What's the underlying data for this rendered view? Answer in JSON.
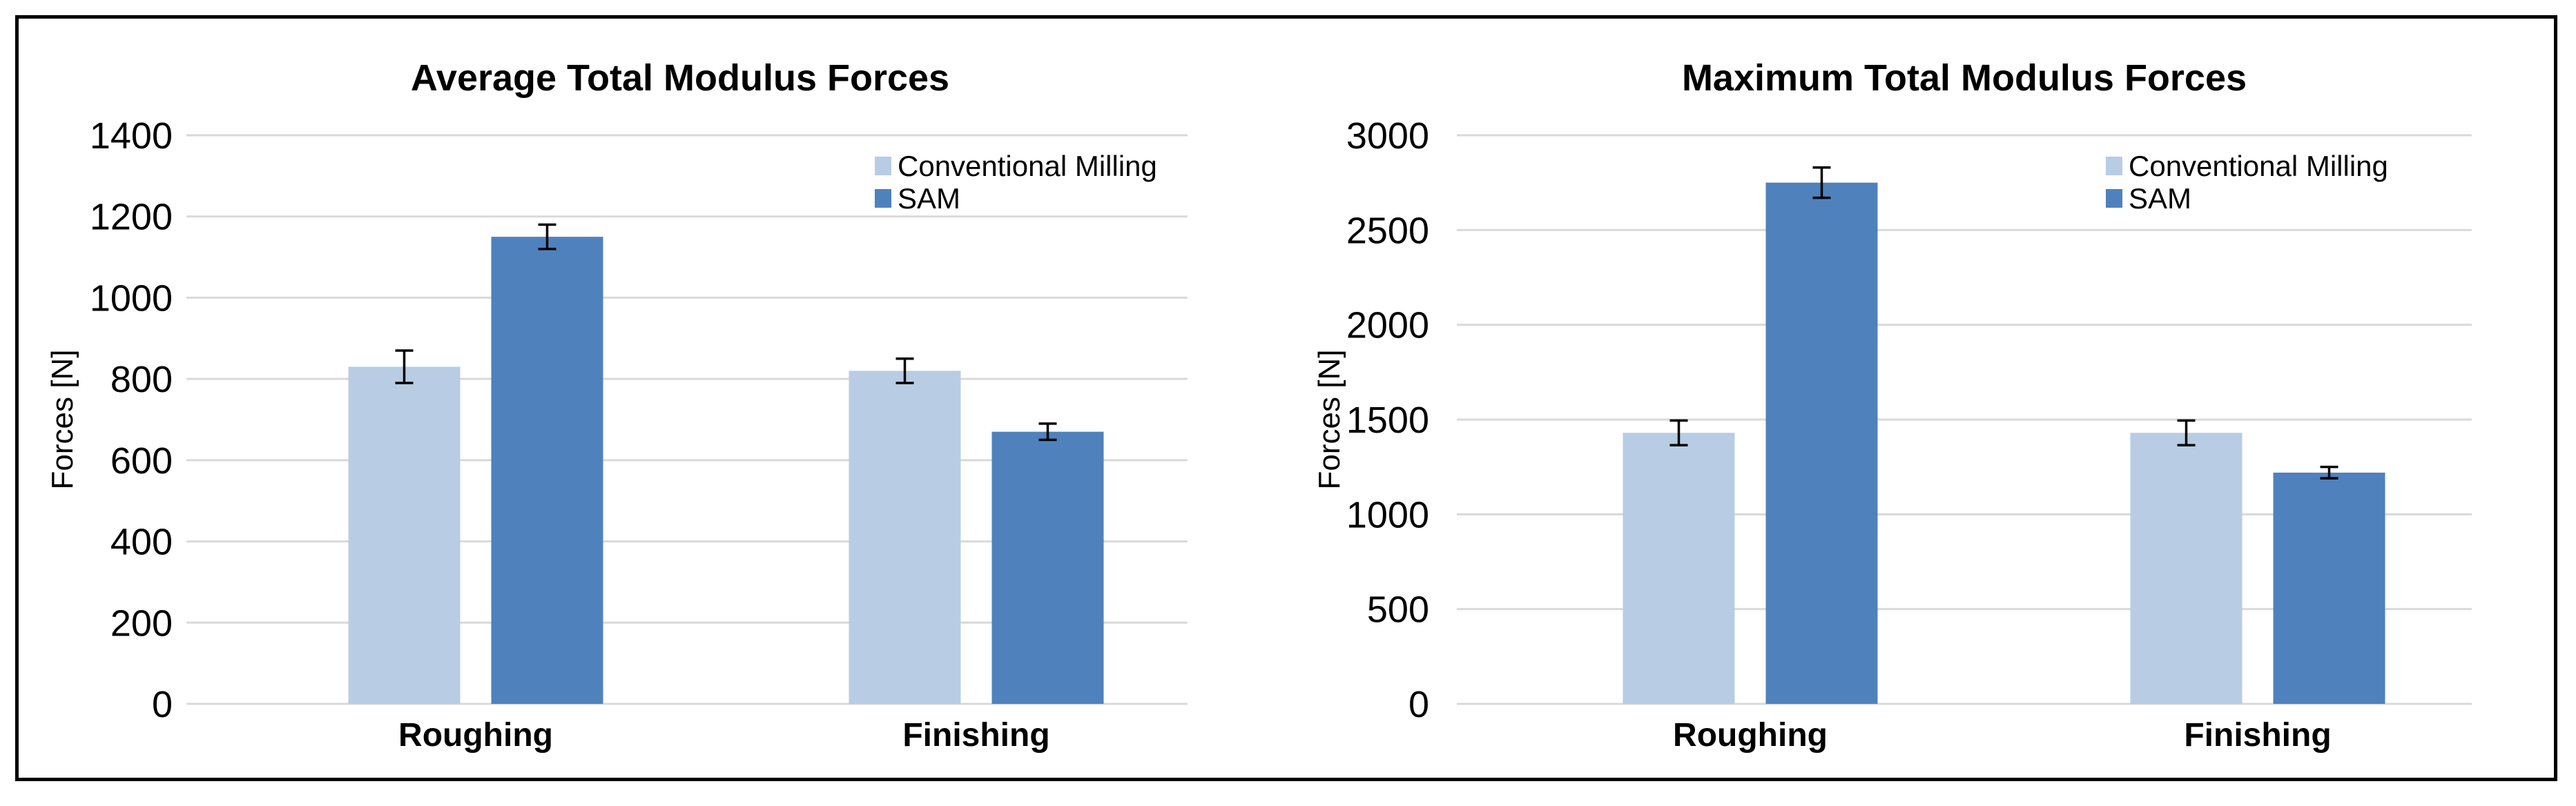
{
  "figure": {
    "background": "#ffffff",
    "border_color": "#000000"
  },
  "colors": {
    "conventional_milling": "#B8CCE4",
    "sam": "#4F81BD",
    "gridline": "#D9D9D9",
    "error_bar": "#000000",
    "text": "#000000"
  },
  "chart_data": [
    {
      "type": "bar",
      "title": "Average Total Modulus Forces",
      "ylabel": "Forces [N]",
      "categories": [
        "Roughing",
        "Finishing"
      ],
      "series": [
        {
          "name": "Conventional Milling",
          "values": [
            830,
            820
          ],
          "errors": [
            40,
            30
          ]
        },
        {
          "name": "SAM",
          "values": [
            1150,
            670
          ],
          "errors": [
            30,
            20
          ]
        }
      ],
      "ylim": [
        0,
        1400
      ],
      "ytick_step": 200,
      "yticks": [
        1400,
        1200,
        1000,
        800,
        600,
        400,
        200,
        0
      ],
      "grid": true,
      "legend_position": "upper-right"
    },
    {
      "type": "bar",
      "title": "Maximum Total Modulus Forces",
      "ylabel": "Forces [N]",
      "categories": [
        "Roughing",
        "Finishing"
      ],
      "series": [
        {
          "name": "Conventional Milling",
          "values": [
            1430,
            1430
          ],
          "errors": [
            65,
            65
          ]
        },
        {
          "name": "SAM",
          "values": [
            2750,
            1220
          ],
          "errors": [
            80,
            30
          ]
        }
      ],
      "ylim": [
        0,
        3000
      ],
      "ytick_step": 500,
      "yticks": [
        3000,
        2500,
        2000,
        1500,
        1000,
        500,
        0
      ],
      "grid": true,
      "legend_position": "upper-right"
    }
  ]
}
